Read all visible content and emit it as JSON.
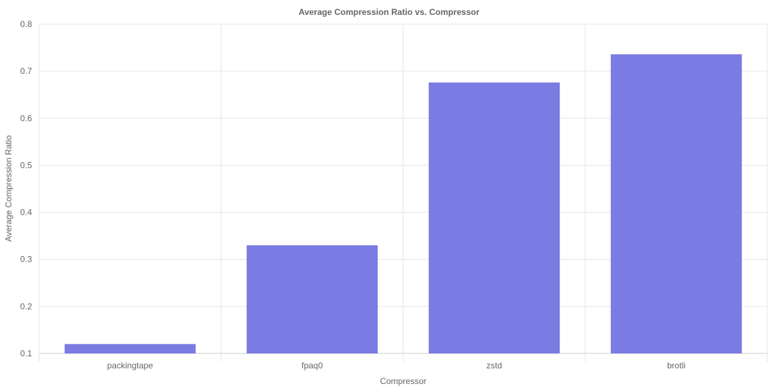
{
  "chart_data": {
    "type": "bar",
    "title": "Average Compression Ratio vs. Compressor",
    "xlabel": "Compressor",
    "ylabel": "Average Compression Ratio",
    "categories": [
      "packingtape",
      "fpaq0",
      "zstd",
      "brotli"
    ],
    "values": [
      0.12,
      0.33,
      0.676,
      0.736
    ],
    "ylim": [
      0.1,
      0.8
    ],
    "yticks": [
      "0.1",
      "0.2",
      "0.3",
      "0.4",
      "0.5",
      "0.6",
      "0.7",
      "0.8"
    ],
    "grid": true,
    "bar_color": "#7b7be3"
  }
}
